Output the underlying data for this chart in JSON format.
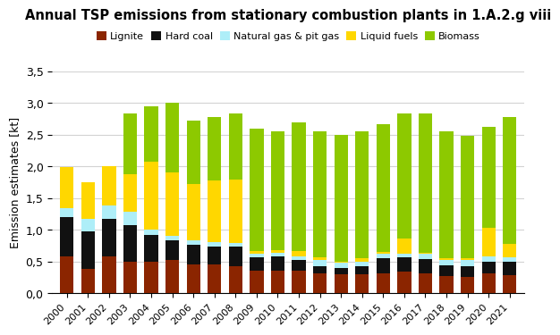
{
  "title": "Annual TSP emissions from stationary combustion plants in 1.A.2.g viii",
  "ylabel": "Emission estimates [kt]",
  "years": [
    2000,
    2001,
    2002,
    2003,
    2004,
    2005,
    2006,
    2007,
    2008,
    2009,
    2010,
    2011,
    2012,
    2013,
    2014,
    2015,
    2016,
    2017,
    2018,
    2019,
    2020,
    2021
  ],
  "lignite": [
    0.58,
    0.38,
    0.58,
    0.5,
    0.5,
    0.52,
    0.46,
    0.45,
    0.43,
    0.36,
    0.36,
    0.36,
    0.32,
    0.3,
    0.3,
    0.32,
    0.34,
    0.32,
    0.27,
    0.26,
    0.32,
    0.28
  ],
  "hard_coal": [
    0.62,
    0.6,
    0.6,
    0.58,
    0.42,
    0.32,
    0.3,
    0.28,
    0.3,
    0.2,
    0.22,
    0.16,
    0.1,
    0.1,
    0.12,
    0.23,
    0.22,
    0.22,
    0.17,
    0.17,
    0.18,
    0.22
  ],
  "natural_gas": [
    0.14,
    0.2,
    0.2,
    0.2,
    0.08,
    0.06,
    0.08,
    0.08,
    0.06,
    0.07,
    0.06,
    0.06,
    0.1,
    0.08,
    0.08,
    0.07,
    0.07,
    0.08,
    0.09,
    0.1,
    0.08,
    0.06
  ],
  "liquid_fuels": [
    0.65,
    0.57,
    0.62,
    0.6,
    1.08,
    1.0,
    0.88,
    0.97,
    1.0,
    0.03,
    0.04,
    0.09,
    0.04,
    0.02,
    0.05,
    0.03,
    0.23,
    0.02,
    0.02,
    0.02,
    0.45,
    0.22
  ],
  "biomass": [
    0.0,
    0.0,
    0.0,
    0.95,
    0.87,
    1.1,
    1.0,
    1.0,
    1.04,
    1.93,
    1.87,
    2.02,
    1.99,
    2.0,
    2.0,
    2.02,
    1.98,
    2.2,
    2.0,
    1.94,
    1.6,
    2.0
  ],
  "colors": {
    "lignite": "#8B2500",
    "hard_coal": "#111111",
    "natural_gas": "#AEEEF8",
    "liquid_fuels": "#FFD700",
    "biomass": "#8DC900"
  },
  "ylim": [
    0,
    3.5
  ],
  "yticks": [
    0.0,
    0.5,
    1.0,
    1.5,
    2.0,
    2.5,
    3.0,
    3.5
  ],
  "ytick_labels": [
    "0,0",
    "0,5",
    "1,0",
    "1,5",
    "2,0",
    "2,5",
    "3,0",
    "3,5"
  ],
  "legend_labels": [
    "Lignite",
    "Hard coal",
    "Natural gas & pit gas",
    "Liquid fuels",
    "Biomass"
  ]
}
